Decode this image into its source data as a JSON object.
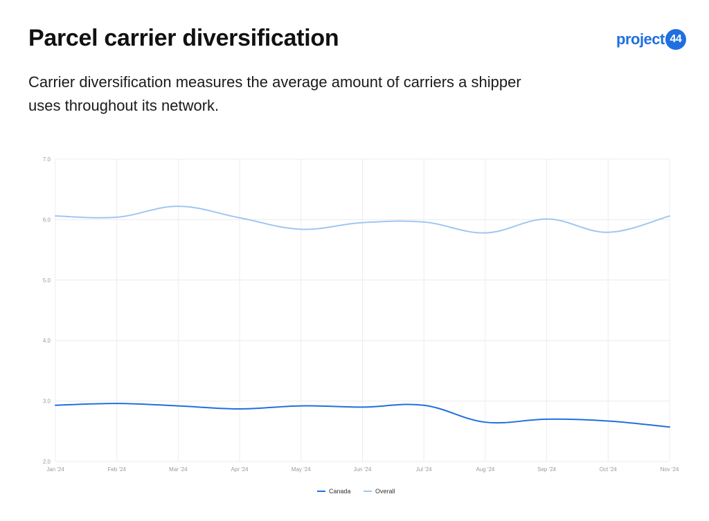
{
  "header": {
    "title": "Parcel carrier diversification",
    "subtitle": "Carrier diversification measures the average amount of carriers a shipper uses throughout its network.",
    "logo": {
      "text": "project",
      "badge": "44"
    }
  },
  "colors": {
    "canada": "#1f6fe0",
    "overall": "#9fc6f2",
    "grid": "#ececec",
    "brand": "#1f6fe0"
  },
  "chart_data": {
    "type": "line",
    "title": "Parcel carrier diversification",
    "xlabel": "",
    "ylabel": "",
    "x": [
      "Jan '24",
      "Feb '24",
      "Mar '24",
      "Apr '24",
      "May '24",
      "Jun '24",
      "Jul '24",
      "Aug '24",
      "Sep '24",
      "Oct '24",
      "Nov '24"
    ],
    "ylim": [
      2.0,
      7.0
    ],
    "yticks": [
      "2.0",
      "3.0",
      "4.0",
      "5.0",
      "6.0",
      "7.0"
    ],
    "grid": true,
    "legend": "bottom-center",
    "series": [
      {
        "name": "Canada",
        "values": [
          2.93,
          2.96,
          2.92,
          2.87,
          2.92,
          2.9,
          2.93,
          2.65,
          2.7,
          2.67,
          2.57
        ]
      },
      {
        "name": "Overall",
        "values": [
          6.06,
          6.04,
          6.22,
          6.03,
          5.84,
          5.95,
          5.96,
          5.78,
          6.01,
          5.79,
          6.06
        ]
      }
    ]
  }
}
